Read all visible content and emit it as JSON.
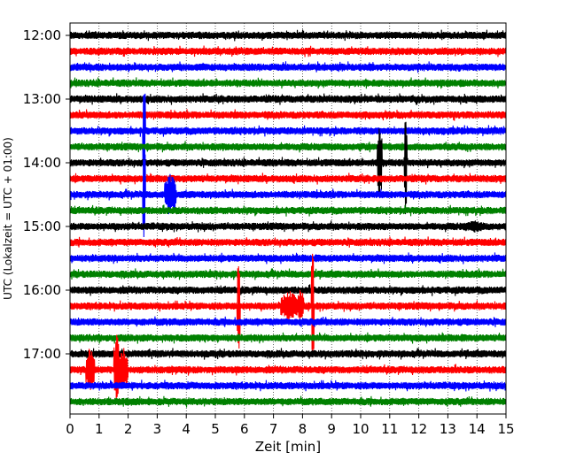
{
  "chart_data": {
    "type": "line",
    "title": "",
    "xlabel": "Zeit  [min]",
    "ylabel": "UTC (Lokalzeit = UTC + 01:00)",
    "xlim": [
      0,
      15
    ],
    "x_ticks": [
      "0",
      "1",
      "2",
      "3",
      "4",
      "5",
      "6",
      "7",
      "8",
      "9",
      "10",
      "11",
      "12",
      "13",
      "14",
      "15"
    ],
    "y_tick_labels": [
      "12:00",
      "13:00",
      "14:00",
      "15:00",
      "16:00",
      "17:00"
    ],
    "grid": "vertical dotted at each minute",
    "traces_per_hour": 4,
    "trace_start": "12:00",
    "trace_length_min": 15,
    "color_cycle": [
      "#000000",
      "#ff0000",
      "#0000ff",
      "#008000"
    ],
    "trace_offsets": [
      "12:00",
      "12:15",
      "12:30",
      "12:45",
      "13:00",
      "13:15",
      "13:30",
      "13:45",
      "14:00",
      "14:15",
      "14:30",
      "14:45",
      "15:00",
      "15:15",
      "15:30",
      "15:45",
      "16:00",
      "16:15",
      "16:30",
      "16:45",
      "17:00",
      "17:15",
      "17:30",
      "17:45"
    ],
    "events": [
      {
        "trace": "13:30",
        "minute": 2.55,
        "amplitude_traces": 3.8,
        "duration_min": 0.05
      },
      {
        "trace": "14:30",
        "minute": 2.55,
        "amplitude_traces": 3.8,
        "duration_min": 0.05
      },
      {
        "trace": "14:30",
        "minute": 3.45,
        "amplitude_traces": 1.4,
        "duration_min": 0.2
      },
      {
        "trace": "14:00",
        "minute": 10.65,
        "amplitude_traces": 3.0,
        "duration_min": 0.08
      },
      {
        "trace": "14:00",
        "minute": 11.55,
        "amplitude_traces": 3.5,
        "duration_min": 0.05
      },
      {
        "trace": "15:00",
        "minute": 13.9,
        "amplitude_traces": 0.4,
        "duration_min": 0.4
      },
      {
        "trace": "16:15",
        "minute": 5.8,
        "amplitude_traces": 3.8,
        "duration_min": 0.05
      },
      {
        "trace": "16:15",
        "minute": 7.55,
        "amplitude_traces": 1.0,
        "duration_min": 0.3
      },
      {
        "trace": "16:15",
        "minute": 7.95,
        "amplitude_traces": 1.2,
        "duration_min": 0.1
      },
      {
        "trace": "16:15",
        "minute": 8.35,
        "amplitude_traces": 4.2,
        "duration_min": 0.05
      },
      {
        "trace": "17:15",
        "minute": 0.7,
        "amplitude_traces": 1.5,
        "duration_min": 0.15
      },
      {
        "trace": "17:15",
        "minute": 1.6,
        "amplitude_traces": 2.5,
        "duration_min": 0.1
      },
      {
        "trace": "17:15",
        "minute": 1.85,
        "amplitude_traces": 1.5,
        "duration_min": 0.15
      },
      {
        "trace": "16:15",
        "minute": 2.1,
        "amplitude_traces": 0.3,
        "duration_min": 0.05
      },
      {
        "trace": "16:45",
        "minute": 6.25,
        "amplitude_traces": 0.3,
        "duration_min": 0.05
      }
    ]
  }
}
